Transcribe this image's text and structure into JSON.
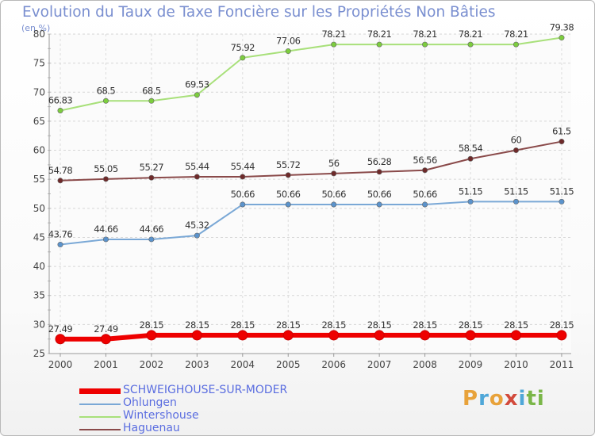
{
  "title": "Evolution du Taux de Taxe Foncière sur les Propriétés Non Bâties",
  "subtitle": "(en %)",
  "logo": {
    "text": "Proxiti",
    "letters": [
      "P",
      "r",
      "o",
      "x",
      "i",
      "t",
      "i"
    ],
    "colors": [
      "#e8a23a",
      "#4fa7d8",
      "#e8a23a",
      "#d24a3c",
      "#4fa7d8",
      "#7ab648",
      "#7ab648"
    ]
  },
  "chart_data": {
    "type": "line",
    "title": "Evolution du Taux de Taxe Foncière sur les Propriétés Non Bâties",
    "ylabel": "(en %)",
    "xlabel": "",
    "ylim": [
      25,
      80
    ],
    "yticks": [
      25,
      30,
      35,
      40,
      45,
      50,
      55,
      60,
      65,
      70,
      75,
      80
    ],
    "grid": true,
    "categories": [
      "2000",
      "2001",
      "2002",
      "2003",
      "2004",
      "2005",
      "2006",
      "2007",
      "2008",
      "2009",
      "2010",
      "2011"
    ],
    "series": [
      {
        "name": "SCHWEIGHOUSE-SUR-MODER",
        "color": "#ee0000",
        "marker": "#ee0000",
        "width": 6,
        "values": [
          27.49,
          27.49,
          28.15,
          28.15,
          28.15,
          28.15,
          28.15,
          28.15,
          28.15,
          28.15,
          28.15,
          28.15
        ],
        "labels": [
          "27.49",
          "27.49",
          "28.15",
          "28.15",
          "28.15",
          "28.15",
          "28.15",
          "28.15",
          "28.15",
          "28.15",
          "28.15",
          "28.15"
        ]
      },
      {
        "name": "Ohlungen",
        "color": "#7aa8d6",
        "marker": "#5b93cc",
        "width": 2,
        "values": [
          43.76,
          44.66,
          44.66,
          45.32,
          50.66,
          50.66,
          50.66,
          50.66,
          50.66,
          51.15,
          51.15,
          51.15
        ],
        "labels": [
          "43.76",
          "44.66",
          "44.66",
          "45.32",
          "50.66",
          "50.66",
          "50.66",
          "50.66",
          "50.66",
          "51.15",
          "51.15",
          "51.15"
        ]
      },
      {
        "name": "Wintershouse",
        "color": "#a8e07a",
        "marker": "#7ccd3e",
        "width": 2,
        "values": [
          66.83,
          68.5,
          68.5,
          69.53,
          75.92,
          77.06,
          78.21,
          78.21,
          78.21,
          78.21,
          78.21,
          79.38
        ],
        "labels": [
          "66.83",
          "68.5",
          "68.5",
          "69.53",
          "75.92",
          "77.06",
          "78.21",
          "78.21",
          "78.21",
          "78.21",
          "78.21",
          "79.38"
        ]
      },
      {
        "name": "Haguenau",
        "color": "#8a4a4a",
        "marker": "#6e2a2a",
        "width": 2,
        "values": [
          54.78,
          55.05,
          55.27,
          55.44,
          55.44,
          55.72,
          56,
          56.28,
          56.56,
          58.54,
          60,
          61.5
        ],
        "labels": [
          "54.78",
          "55.05",
          "55.27",
          "55.44",
          "55.44",
          "55.72",
          "56",
          "56.28",
          "56.56",
          "58.54",
          "60",
          "61.5"
        ]
      }
    ]
  }
}
